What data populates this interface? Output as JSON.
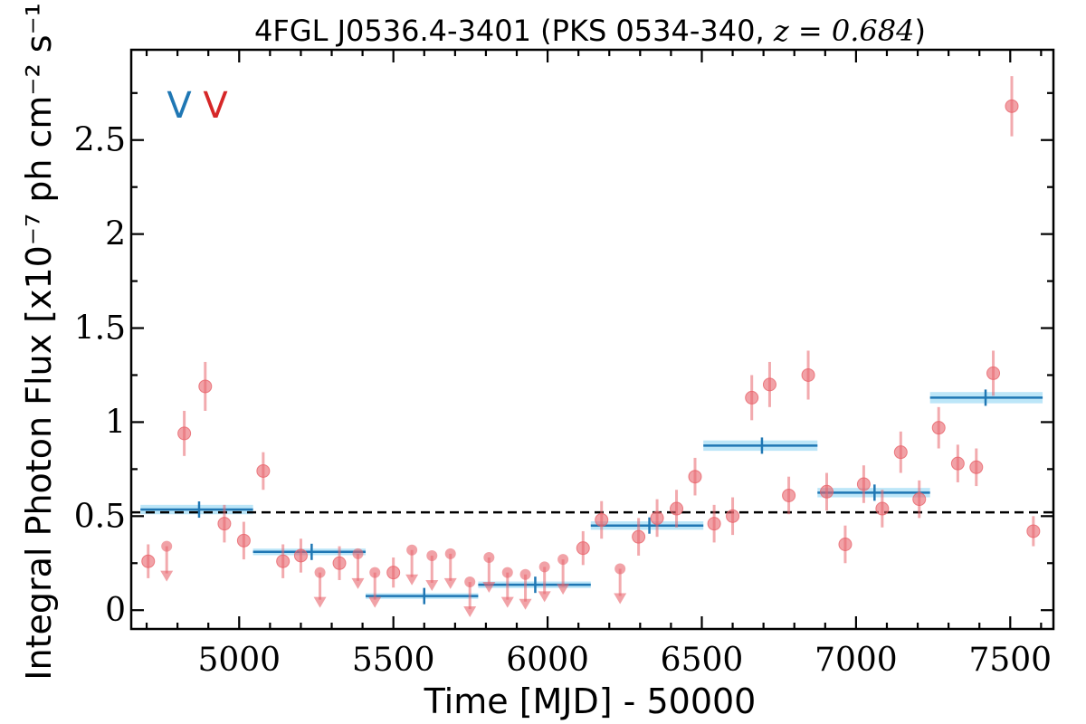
{
  "chart_data": {
    "type": "scatter",
    "title_prefix": "4FGL J0536.4-3401 (PKS 0534-340, ",
    "title_z": "z = 0.684",
    "title_suffix": ")",
    "xlabel": "Time [MJD] - 50000",
    "ylabel": "Integral Photon Flux [x10⁻⁷ ph cm⁻² s⁻¹]",
    "xlim": [
      4650,
      7640
    ],
    "ylim": [
      -0.1,
      2.98
    ],
    "xticks": [
      5000,
      5500,
      6000,
      6500,
      7000,
      7500
    ],
    "xtick_labels": [
      "5000",
      "5500",
      "6000",
      "6500",
      "7000",
      "7500"
    ],
    "yticks": [
      0,
      0.5,
      1,
      1.5,
      2,
      2.5
    ],
    "ytick_labels": [
      "0",
      "0.5",
      "1",
      "1.5",
      "2",
      "2.5"
    ],
    "markers": [
      {
        "label": "V",
        "color": "#1f77b4"
      },
      {
        "label": "V",
        "color": "#d62728"
      }
    ],
    "mean_flux": 0.52,
    "colors": {
      "points": "#e8646c",
      "bins": "#1f77b4",
      "bin_band": "#a6ddf5",
      "mean": "#000000"
    },
    "series": [
      {
        "values": [
          {
            "x": 4705,
            "y": 0.26,
            "err": 0.09
          },
          {
            "x": 4822,
            "y": 0.94,
            "err": 0.12
          },
          {
            "x": 4890,
            "y": 1.19,
            "err": 0.13
          },
          {
            "x": 4952,
            "y": 0.46,
            "err": 0.1
          },
          {
            "x": 5015,
            "y": 0.37,
            "err": 0.1
          },
          {
            "x": 5078,
            "y": 0.74,
            "err": 0.1
          },
          {
            "x": 5142,
            "y": 0.26,
            "err": 0.09
          },
          {
            "x": 5200,
            "y": 0.29,
            "err": 0.09
          },
          {
            "x": 5325,
            "y": 0.25,
            "err": 0.09
          },
          {
            "x": 5500,
            "y": 0.2,
            "err": 0.08
          },
          {
            "x": 6115,
            "y": 0.33,
            "err": 0.09
          },
          {
            "x": 6175,
            "y": 0.48,
            "err": 0.1
          },
          {
            "x": 6295,
            "y": 0.39,
            "err": 0.1
          },
          {
            "x": 6355,
            "y": 0.49,
            "err": 0.1
          },
          {
            "x": 6418,
            "y": 0.54,
            "err": 0.1
          },
          {
            "x": 6478,
            "y": 0.71,
            "err": 0.1
          },
          {
            "x": 6540,
            "y": 0.46,
            "err": 0.1
          },
          {
            "x": 6600,
            "y": 0.5,
            "err": 0.1
          },
          {
            "x": 6662,
            "y": 1.13,
            "err": 0.12
          },
          {
            "x": 6720,
            "y": 1.2,
            "err": 0.12
          },
          {
            "x": 6782,
            "y": 0.61,
            "err": 0.1
          },
          {
            "x": 6845,
            "y": 1.25,
            "err": 0.13
          },
          {
            "x": 6905,
            "y": 0.63,
            "err": 0.1
          },
          {
            "x": 6965,
            "y": 0.35,
            "err": 0.1
          },
          {
            "x": 7025,
            "y": 0.67,
            "err": 0.1
          },
          {
            "x": 7085,
            "y": 0.54,
            "err": 0.1
          },
          {
            "x": 7145,
            "y": 0.84,
            "err": 0.11
          },
          {
            "x": 7205,
            "y": 0.59,
            "err": 0.1
          },
          {
            "x": 7268,
            "y": 0.97,
            "err": 0.11
          },
          {
            "x": 7330,
            "y": 0.78,
            "err": 0.1
          },
          {
            "x": 7390,
            "y": 0.76,
            "err": 0.1
          },
          {
            "x": 7445,
            "y": 1.26,
            "err": 0.12
          },
          {
            "x": 7505,
            "y": 2.68,
            "err": 0.16
          },
          {
            "x": 7575,
            "y": 0.42,
            "err": 0.08
          }
        ],
        "upper_limits": [
          {
            "x": 4765,
            "y": 0.34
          },
          {
            "x": 5262,
            "y": 0.2
          },
          {
            "x": 5385,
            "y": 0.3
          },
          {
            "x": 5440,
            "y": 0.2
          },
          {
            "x": 5560,
            "y": 0.32
          },
          {
            "x": 5625,
            "y": 0.29
          },
          {
            "x": 5685,
            "y": 0.3
          },
          {
            "x": 5748,
            "y": 0.15
          },
          {
            "x": 5810,
            "y": 0.28
          },
          {
            "x": 5870,
            "y": 0.2
          },
          {
            "x": 5928,
            "y": 0.19
          },
          {
            "x": 5990,
            "y": 0.23
          },
          {
            "x": 6050,
            "y": 0.27
          },
          {
            "x": 6235,
            "y": 0.22
          }
        ]
      },
      {
        "values": [
          {
            "x0": 4680,
            "x1": 5045,
            "y": 0.535,
            "band": 0.05,
            "xc": 4870
          },
          {
            "x0": 5045,
            "x1": 5410,
            "y": 0.31,
            "band": 0.035,
            "xc": 5235
          },
          {
            "x0": 5410,
            "x1": 5775,
            "y": 0.075,
            "band": 0.03,
            "xc": 5600
          },
          {
            "x0": 5775,
            "x1": 6140,
            "y": 0.135,
            "band": 0.035,
            "xc": 5960
          },
          {
            "x0": 6140,
            "x1": 6505,
            "y": 0.45,
            "band": 0.045,
            "xc": 6330
          },
          {
            "x0": 6505,
            "x1": 6875,
            "y": 0.875,
            "band": 0.055,
            "xc": 6695
          },
          {
            "x0": 6875,
            "x1": 7240,
            "y": 0.625,
            "band": 0.05,
            "xc": 7060
          },
          {
            "x0": 7240,
            "x1": 7605,
            "y": 1.13,
            "band": 0.06,
            "xc": 7420
          }
        ]
      }
    ]
  }
}
